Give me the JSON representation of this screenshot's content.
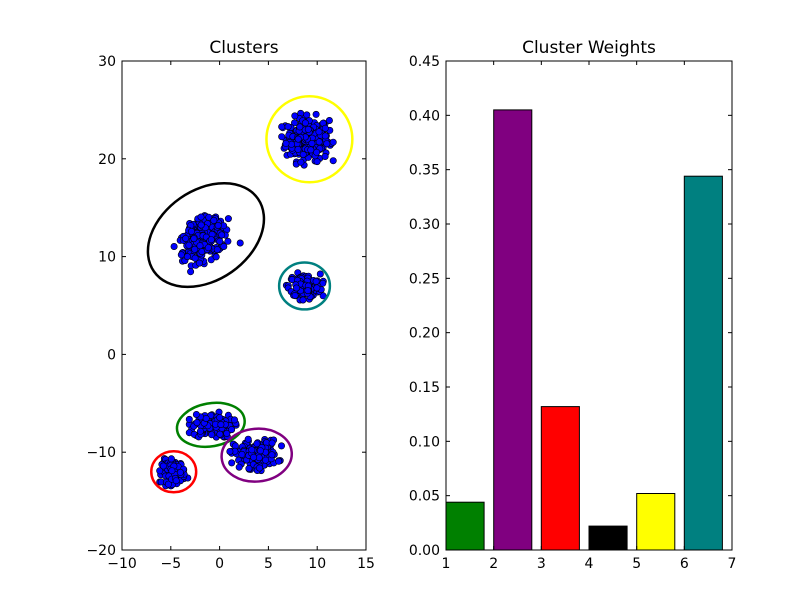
{
  "chart_data": [
    {
      "type": "scatter",
      "title": "Clusters",
      "xlabel": "",
      "ylabel": "",
      "xlim": [
        -10,
        15
      ],
      "ylim": [
        -20,
        30
      ],
      "xticks": [
        -10,
        -5,
        0,
        5,
        10,
        15
      ],
      "yticks": [
        -20,
        -10,
        0,
        10,
        20,
        30
      ],
      "xtick_labels": [
        "−10",
        "−5",
        "0",
        "5",
        "10",
        "15"
      ],
      "ytick_labels": [
        "−20",
        "−10",
        "0",
        "10",
        "20",
        "30"
      ],
      "point_color": "#0000ff",
      "clusters": [
        {
          "center": [
            9,
            22
          ],
          "spread": [
            1.1,
            1.1
          ],
          "count": 260
        },
        {
          "center": [
            -1.5,
            11.8
          ],
          "spread": [
            1.3,
            0.9
          ],
          "tilt": 30,
          "count": 260
        },
        {
          "center": [
            8.7,
            7
          ],
          "spread": [
            0.8,
            0.6
          ],
          "count": 150
        },
        {
          "center": [
            -0.7,
            -7.3
          ],
          "spread": [
            1.0,
            0.6
          ],
          "count": 150
        },
        {
          "center": [
            3.7,
            -10.2
          ],
          "spread": [
            1.1,
            0.7
          ],
          "count": 180
        },
        {
          "center": [
            -4.7,
            -12
          ],
          "spread": [
            0.6,
            0.6
          ],
          "count": 110
        }
      ],
      "ellipses": [
        {
          "center": [
            9.2,
            22
          ],
          "radii": [
            4.4,
            4.4
          ],
          "angle": 0,
          "color": "#ffff00"
        },
        {
          "center": [
            -1.4,
            12.2
          ],
          "radii": [
            6.5,
            4.6
          ],
          "angle": 35,
          "color": "#000000"
        },
        {
          "center": [
            8.7,
            7
          ],
          "radii": [
            2.6,
            2.4
          ],
          "angle": 0,
          "color": "#008080"
        },
        {
          "center": [
            -0.9,
            -7.2
          ],
          "radii": [
            3.5,
            2.2
          ],
          "angle": 10,
          "color": "#008000"
        },
        {
          "center": [
            3.8,
            -10.3
          ],
          "radii": [
            3.6,
            2.7
          ],
          "angle": 5,
          "color": "#800080"
        },
        {
          "center": [
            -4.7,
            -12
          ],
          "radii": [
            2.3,
            2.1
          ],
          "angle": 0,
          "color": "#ff0000"
        }
      ]
    },
    {
      "type": "bar",
      "title": "Cluster Weights",
      "xlabel": "",
      "ylabel": "",
      "xlim": [
        1,
        7
      ],
      "ylim": [
        0,
        0.45
      ],
      "xticks": [
        1,
        2,
        3,
        4,
        5,
        6,
        7
      ],
      "xtick_labels": [
        "1",
        "2",
        "3",
        "4",
        "5",
        "6",
        "7"
      ],
      "yticks": [
        0,
        0.05,
        0.1,
        0.15,
        0.2,
        0.25,
        0.3,
        0.35,
        0.4,
        0.45
      ],
      "ytick_labels": [
        "0.00",
        "0.05",
        "0.10",
        "0.15",
        "0.20",
        "0.25",
        "0.30",
        "0.35",
        "0.40",
        "0.45"
      ],
      "bar_width": 0.8,
      "bars": [
        {
          "x": 1.0,
          "value": 0.044,
          "color": "#008000"
        },
        {
          "x": 2.0,
          "value": 0.405,
          "color": "#800080"
        },
        {
          "x": 3.0,
          "value": 0.132,
          "color": "#ff0000"
        },
        {
          "x": 4.0,
          "value": 0.022,
          "color": "#000000"
        },
        {
          "x": 5.0,
          "value": 0.052,
          "color": "#ffff00"
        },
        {
          "x": 6.0,
          "value": 0.344,
          "color": "#008080"
        }
      ]
    }
  ]
}
